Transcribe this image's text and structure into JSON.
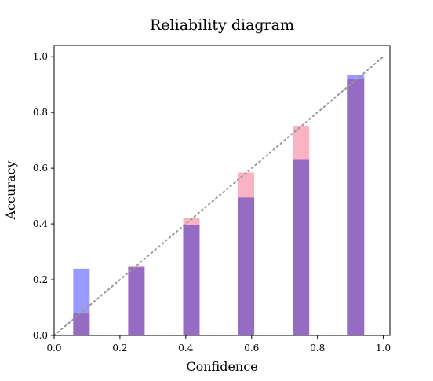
{
  "chart_data": {
    "type": "bar",
    "title": "Reliability diagram",
    "xlabel": "Confidence",
    "ylabel": "Accuracy",
    "xlim": [
      0.0,
      1.02
    ],
    "ylim": [
      0.0,
      1.04
    ],
    "grid": false,
    "x_ticks": [
      "0.0",
      "0.2",
      "0.4",
      "0.6",
      "0.8",
      "1.0"
    ],
    "y_ticks": [
      "0.0",
      "0.2",
      "0.4",
      "0.6",
      "0.8",
      "1.0"
    ],
    "bar_width": 0.05,
    "x": [
      0.083,
      0.25,
      0.417,
      0.583,
      0.75,
      0.917
    ],
    "series": [
      {
        "values": [
          0.08,
          0.25,
          0.42,
          0.585,
          0.75,
          0.92
        ],
        "color": "#f8a0b4"
      },
      {
        "values": [
          0.24,
          0.245,
          0.395,
          0.495,
          0.63,
          0.935
        ],
        "color": "#8080ff"
      }
    ],
    "reference_line": {
      "from": [
        0.0,
        0.0
      ],
      "to": [
        1.0,
        1.0
      ],
      "style": "dotted",
      "color": "#999999"
    }
  }
}
